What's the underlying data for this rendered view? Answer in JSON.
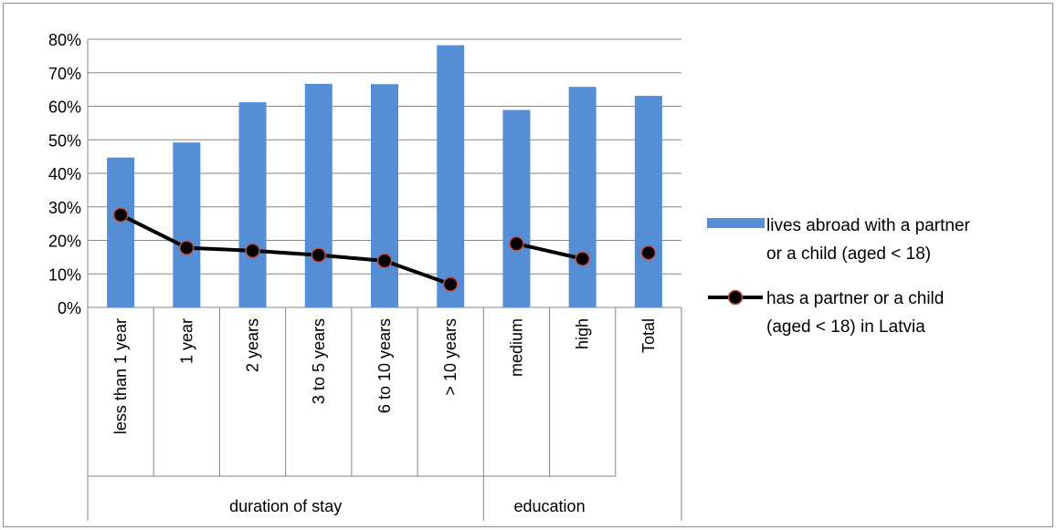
{
  "chart_data": {
    "type": "bar",
    "categories": [
      "less than 1 year",
      "1 year",
      "2 years",
      "3 to 5 years",
      "6 to 10 years",
      "> 10 years",
      "medium",
      "high",
      "Total"
    ],
    "groups": [
      {
        "label": "duration of stay",
        "categories": [
          "less than 1 year",
          "1 year",
          "2 years",
          "3 to 5 years",
          "6 to 10 years",
          "> 10 years"
        ]
      },
      {
        "label": "education",
        "categories": [
          "medium",
          "high"
        ]
      }
    ],
    "series": [
      {
        "name": "lives abroad with a partner or a child (aged < 18)",
        "type": "bar",
        "color": "#558ed5",
        "values": [
          44.7,
          49.2,
          61.2,
          66.7,
          66.6,
          78.2,
          58.9,
          65.8,
          63.1
        ]
      },
      {
        "name": "has a partner or  a child (aged < 18) in Latvia",
        "type": "line",
        "color": "#000000",
        "marker_fill": "#000000",
        "marker_stroke": "#c0504d",
        "values": [
          27.6,
          17.8,
          16.9,
          15.6,
          13.9,
          6.9,
          19.0,
          14.5,
          16.3
        ],
        "segments": [
          [
            0,
            5
          ],
          [
            6,
            7
          ],
          [
            8,
            8
          ]
        ]
      }
    ],
    "ylim": [
      0,
      80
    ],
    "yticks": [
      "0%",
      "10%",
      "20%",
      "30%",
      "40%",
      "50%",
      "60%",
      "70%",
      "80%"
    ],
    "grid": true,
    "legend_position": "right",
    "legend": [
      {
        "lines": [
          "lives abroad with a partner",
          "or a child (aged < 18)"
        ]
      },
      {
        "lines": [
          "has a partner or  a child",
          "(aged < 18) in Latvia"
        ]
      }
    ]
  }
}
